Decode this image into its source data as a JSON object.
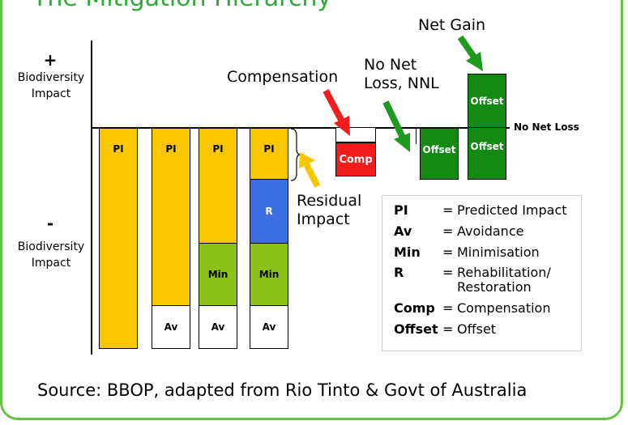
{
  "title": "The Mitigation Hierarchy",
  "axis": {
    "plus_sign": "+",
    "plus_label": "Biodiversity Impact",
    "minus_sign": "-",
    "minus_label": "Biodiversity Impact",
    "baseline_label": "No Net Loss"
  },
  "bars": [
    {
      "segments": [
        {
          "label": "PI",
          "color": "yellow"
        }
      ]
    },
    {
      "segments": [
        {
          "label": "PI",
          "color": "yellow"
        },
        {
          "label": "Av",
          "color": "white"
        }
      ]
    },
    {
      "segments": [
        {
          "label": "PI",
          "color": "yellow"
        },
        {
          "label": "Min",
          "color": "green"
        },
        {
          "label": "Av",
          "color": "white"
        }
      ]
    },
    {
      "segments": [
        {
          "label": "PI",
          "color": "yellow"
        },
        {
          "label": "R",
          "color": "blue"
        },
        {
          "label": "Min",
          "color": "green"
        },
        {
          "label": "Av",
          "color": "white"
        }
      ]
    },
    {
      "segments": [
        {
          "label": "Comp",
          "color": "red"
        }
      ]
    },
    {
      "segments": [
        {
          "label": "Offset",
          "color": "dark-green"
        }
      ]
    },
    {
      "segments": [
        {
          "label": "Offset",
          "color": "dark-green"
        },
        {
          "label": "Offset",
          "color": "dark-green"
        }
      ]
    }
  ],
  "callouts": {
    "residual": "Residual Impact",
    "residual_l1": "Residual",
    "residual_l2": "Impact",
    "compensation": "Compensation",
    "nnl_l1": "No Net",
    "nnl_l2": "Loss, NNL",
    "net_gain": "Net Gain"
  },
  "legend": [
    {
      "abbr": "PI",
      "eq": "=",
      "def": "Predicted Impact"
    },
    {
      "abbr": "Av",
      "eq": "=",
      "def": "Avoidance"
    },
    {
      "abbr": "Min",
      "eq": "=",
      "def": "Minimisation"
    },
    {
      "abbr": "R",
      "eq": "=",
      "def": "Rehabilitation/",
      "def2": "Restoration"
    },
    {
      "abbr": "Comp",
      "eq": "=",
      "def": "Compensation"
    },
    {
      "abbr": "Offset",
      "eq": "=",
      "def": "Offset"
    }
  ],
  "colors": {
    "yellow": "#f9c700",
    "green": "#8cc217",
    "blue": "#3b6ee0",
    "red": "#f01d1d",
    "dark_green": "#148a14",
    "arrow_yellow": "#f9c700",
    "arrow_red": "#f01d1d",
    "arrow_green": "#1e9a1e",
    "frame": "#6cc04a"
  },
  "source": "Source: BBOP, adapted from Rio Tinto & Govt of Australia"
}
